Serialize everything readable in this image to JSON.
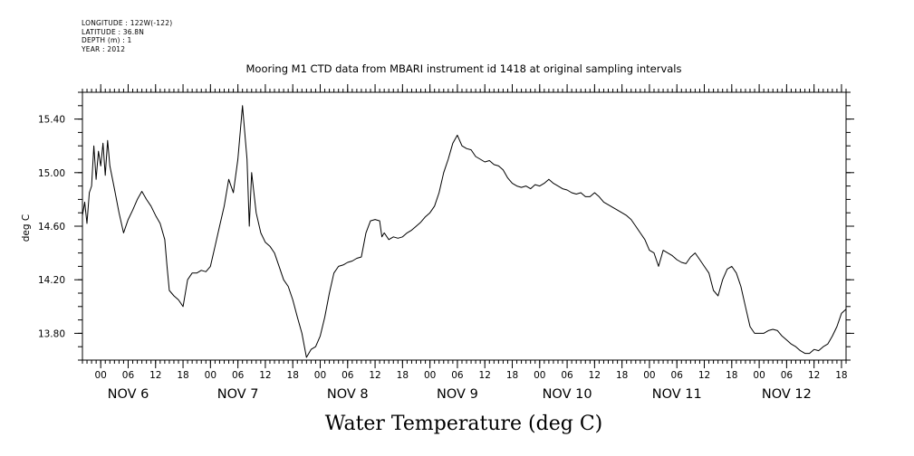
{
  "metadata": {
    "longitude": "LONGITUDE : 122W(-122)",
    "latitude": "LATITUDE : 36.8N",
    "depth": "DEPTH (m) : 1",
    "year": "YEAR : 2012"
  },
  "chart_data": {
    "type": "line",
    "title": "Mooring M1 CTD data from MBARI instrument id 1418 at original sampling intervals",
    "xlabel": "Water Temperature (deg C)",
    "ylabel": "deg C",
    "ylim": [
      13.6,
      15.6
    ],
    "y_ticks": [
      "13.80",
      "14.20",
      "14.60",
      "15.00",
      "15.40"
    ],
    "x_hour_ticks": [
      "00",
      "06",
      "12",
      "18",
      "00",
      "06",
      "12",
      "18",
      "00",
      "06",
      "12",
      "18",
      "00",
      "06",
      "12",
      "18",
      "00",
      "06",
      "12",
      "18",
      "00",
      "06",
      "12",
      "18",
      "00",
      "06",
      "12",
      "18"
    ],
    "x_day_labels": [
      "NOV  6",
      "NOV  7",
      "NOV  8",
      "NOV  9",
      "NOV 10",
      "NOV 11",
      "NOV 12"
    ],
    "x_unit": "hours since 00:00 NOV 6 2012",
    "xlim": [
      -4,
      163
    ],
    "grid": false,
    "series": [
      {
        "values": [
          [
            -4,
            14.68
          ],
          [
            -3.5,
            14.78
          ],
          [
            -3,
            14.62
          ],
          [
            -2.5,
            14.85
          ],
          [
            -2,
            14.9
          ],
          [
            -1.5,
            15.2
          ],
          [
            -1,
            14.95
          ],
          [
            -0.5,
            15.16
          ],
          [
            0,
            15.05
          ],
          [
            0.5,
            15.22
          ],
          [
            1,
            14.98
          ],
          [
            1.5,
            15.24
          ],
          [
            2,
            15.05
          ],
          [
            3,
            14.88
          ],
          [
            4,
            14.7
          ],
          [
            5,
            14.55
          ],
          [
            6,
            14.65
          ],
          [
            7,
            14.72
          ],
          [
            8,
            14.8
          ],
          [
            9,
            14.86
          ],
          [
            10,
            14.8
          ],
          [
            11,
            14.75
          ],
          [
            12,
            14.68
          ],
          [
            13,
            14.62
          ],
          [
            14,
            14.5
          ],
          [
            14.5,
            14.3
          ],
          [
            15,
            14.12
          ],
          [
            16,
            14.08
          ],
          [
            17,
            14.05
          ],
          [
            18,
            14.0
          ],
          [
            19,
            14.2
          ],
          [
            20,
            14.25
          ],
          [
            21,
            14.25
          ],
          [
            22,
            14.27
          ],
          [
            23,
            14.26
          ],
          [
            24,
            14.3
          ],
          [
            25,
            14.45
          ],
          [
            26,
            14.6
          ],
          [
            27,
            14.75
          ],
          [
            28,
            14.95
          ],
          [
            29,
            14.85
          ],
          [
            30,
            15.1
          ],
          [
            31,
            15.5
          ],
          [
            32,
            15.1
          ],
          [
            32.5,
            14.6
          ],
          [
            33,
            15.0
          ],
          [
            34,
            14.7
          ],
          [
            35,
            14.55
          ],
          [
            36,
            14.48
          ],
          [
            37,
            14.45
          ],
          [
            38,
            14.4
          ],
          [
            39,
            14.3
          ],
          [
            40,
            14.2
          ],
          [
            41,
            14.15
          ],
          [
            42,
            14.05
          ],
          [
            43,
            13.92
          ],
          [
            44,
            13.8
          ],
          [
            45,
            13.62
          ],
          [
            46,
            13.68
          ],
          [
            47,
            13.7
          ],
          [
            48,
            13.78
          ],
          [
            49,
            13.92
          ],
          [
            50,
            14.1
          ],
          [
            51,
            14.25
          ],
          [
            52,
            14.3
          ],
          [
            53,
            14.31
          ],
          [
            54,
            14.33
          ],
          [
            55,
            14.34
          ],
          [
            56,
            14.36
          ],
          [
            57,
            14.37
          ],
          [
            58,
            14.55
          ],
          [
            59,
            14.64
          ],
          [
            60,
            14.65
          ],
          [
            61,
            14.64
          ],
          [
            61.5,
            14.52
          ],
          [
            62,
            14.55
          ],
          [
            63,
            14.5
          ],
          [
            64,
            14.52
          ],
          [
            65,
            14.51
          ],
          [
            66,
            14.52
          ],
          [
            67,
            14.55
          ],
          [
            68,
            14.57
          ],
          [
            69,
            14.6
          ],
          [
            70,
            14.63
          ],
          [
            71,
            14.67
          ],
          [
            72,
            14.7
          ],
          [
            73,
            14.75
          ],
          [
            74,
            14.85
          ],
          [
            75,
            15.0
          ],
          [
            76,
            15.1
          ],
          [
            77,
            15.22
          ],
          [
            78,
            15.28
          ],
          [
            79,
            15.2
          ],
          [
            80,
            15.18
          ],
          [
            81,
            15.17
          ],
          [
            82,
            15.12
          ],
          [
            83,
            15.1
          ],
          [
            84,
            15.08
          ],
          [
            85,
            15.09
          ],
          [
            86,
            15.06
          ],
          [
            87,
            15.05
          ],
          [
            88,
            15.02
          ],
          [
            89,
            14.96
          ],
          [
            90,
            14.92
          ],
          [
            91,
            14.9
          ],
          [
            92,
            14.89
          ],
          [
            93,
            14.9
          ],
          [
            94,
            14.88
          ],
          [
            95,
            14.91
          ],
          [
            96,
            14.9
          ],
          [
            97,
            14.92
          ],
          [
            98,
            14.95
          ],
          [
            99,
            14.92
          ],
          [
            100,
            14.9
          ],
          [
            101,
            14.88
          ],
          [
            102,
            14.87
          ],
          [
            103,
            14.85
          ],
          [
            104,
            14.84
          ],
          [
            105,
            14.85
          ],
          [
            106,
            14.82
          ],
          [
            107,
            14.82
          ],
          [
            108,
            14.85
          ],
          [
            109,
            14.82
          ],
          [
            110,
            14.78
          ],
          [
            111,
            14.76
          ],
          [
            112,
            14.74
          ],
          [
            113,
            14.72
          ],
          [
            114,
            14.7
          ],
          [
            115,
            14.68
          ],
          [
            116,
            14.65
          ],
          [
            117,
            14.6
          ],
          [
            118,
            14.55
          ],
          [
            119,
            14.5
          ],
          [
            120,
            14.42
          ],
          [
            121,
            14.4
          ],
          [
            121.5,
            14.35
          ],
          [
            122,
            14.3
          ],
          [
            123,
            14.42
          ],
          [
            124,
            14.4
          ],
          [
            125,
            14.38
          ],
          [
            126,
            14.35
          ],
          [
            127,
            14.33
          ],
          [
            128,
            14.32
          ],
          [
            129,
            14.37
          ],
          [
            130,
            14.4
          ],
          [
            131,
            14.35
          ],
          [
            132,
            14.3
          ],
          [
            133,
            14.25
          ],
          [
            134,
            14.12
          ],
          [
            135,
            14.08
          ],
          [
            136,
            14.2
          ],
          [
            137,
            14.28
          ],
          [
            138,
            14.3
          ],
          [
            139,
            14.25
          ],
          [
            140,
            14.15
          ],
          [
            141,
            14.0
          ],
          [
            142,
            13.85
          ],
          [
            143,
            13.8
          ],
          [
            144,
            13.8
          ],
          [
            145,
            13.8
          ],
          [
            146,
            13.82
          ],
          [
            147,
            13.83
          ],
          [
            148,
            13.82
          ],
          [
            149,
            13.78
          ],
          [
            150,
            13.75
          ],
          [
            151,
            13.72
          ],
          [
            152,
            13.7
          ],
          [
            153,
            13.67
          ],
          [
            154,
            13.65
          ],
          [
            155,
            13.65
          ],
          [
            156,
            13.68
          ],
          [
            157,
            13.67
          ],
          [
            158,
            13.7
          ],
          [
            159,
            13.72
          ],
          [
            160,
            13.78
          ],
          [
            161,
            13.85
          ],
          [
            162,
            13.95
          ],
          [
            163,
            13.98
          ]
        ]
      }
    ]
  }
}
